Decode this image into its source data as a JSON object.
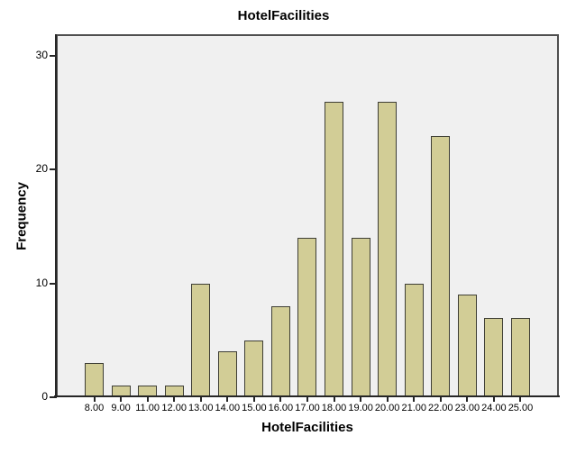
{
  "chart_data": {
    "type": "bar",
    "title": "HotelFacilities",
    "xlabel": "HotelFacilities",
    "ylabel": "Frequency",
    "categories": [
      "8.00",
      "9.00",
      "11.00",
      "12.00",
      "13.00",
      "14.00",
      "15.00",
      "16.00",
      "17.00",
      "18.00",
      "19.00",
      "20.00",
      "21.00",
      "22.00",
      "23.00",
      "24.00",
      "25.00"
    ],
    "values": [
      3,
      1,
      1,
      1,
      10,
      4,
      5,
      8,
      14,
      26,
      14,
      26,
      10,
      23,
      9,
      7,
      7
    ],
    "yticks": [
      0,
      10,
      20,
      30
    ],
    "ylim": [
      0,
      31.9
    ],
    "grid": false,
    "legend": false,
    "bar_color": "#d2cd96",
    "bar_border_color": "#3e3e35",
    "plot_background": "#f0f0f0",
    "frame_color": "#4f4f4f",
    "axis_color": "#262626"
  }
}
